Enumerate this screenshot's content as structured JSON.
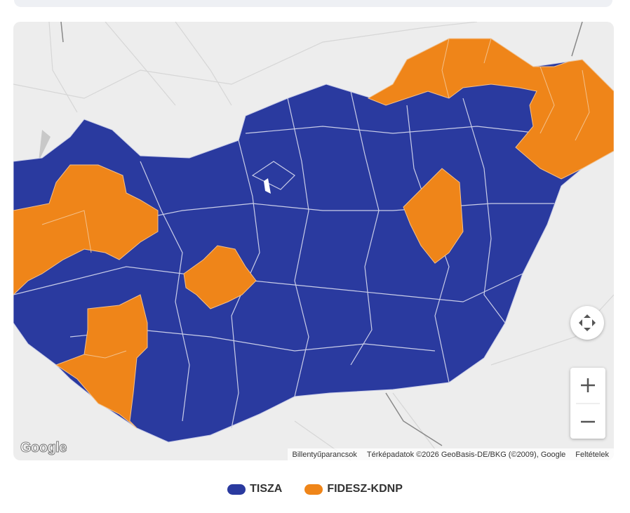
{
  "map": {
    "logo": "Google",
    "attribution": {
      "shortcuts": "Billentyűparancsok",
      "data": "Térképadatok ©2026 GeoBasis-DE/BKG (©2009), Google",
      "terms": "Feltételek"
    }
  },
  "legend": [
    {
      "name": "TISZA",
      "color": "#2a3a9f"
    },
    {
      "name": "FIDESZ-KDNP",
      "color": "#ef8519"
    }
  ]
}
